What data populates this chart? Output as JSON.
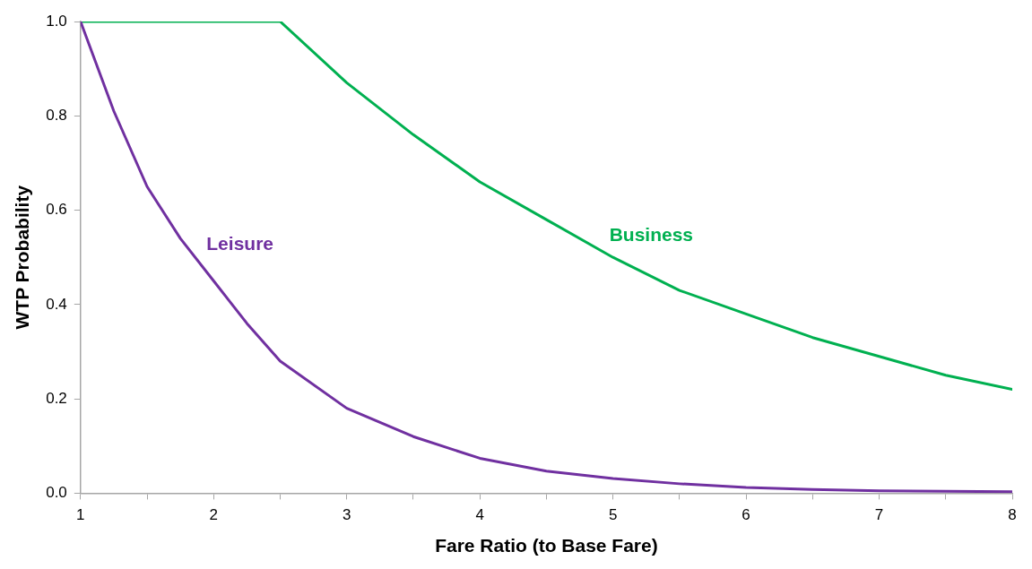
{
  "chart_data": {
    "type": "line",
    "xlabel": "Fare Ratio (to Base Fare)",
    "ylabel": "WTP Probability",
    "xlim": [
      1,
      8
    ],
    "xticks": [
      1,
      {
        "value": 1.5,
        "label": null
      },
      2,
      {
        "value": 2.5,
        "label": null
      },
      3,
      {
        "value": 3.5,
        "label": null
      },
      4,
      {
        "value": 4.5,
        "label": null
      },
      5,
      {
        "value": 5.5,
        "label": null
      },
      6,
      {
        "value": 6.5,
        "label": null
      },
      7,
      {
        "value": 7.5,
        "label": null
      },
      8
    ],
    "ylim": [
      0,
      1
    ],
    "yticks": [
      {
        "value": 0,
        "label": "0.0"
      },
      {
        "value": 0.2,
        "label": "0.2"
      },
      {
        "value": 0.4,
        "label": "0.4"
      },
      {
        "value": 0.6,
        "label": "0.6"
      },
      {
        "value": 0.8,
        "label": "0.8"
      },
      {
        "value": 1,
        "label": "1.0"
      }
    ],
    "grid": false,
    "legend": false,
    "marker": "none",
    "line_style": "solid",
    "series": [
      {
        "name": "Leisure",
        "color": "#7030a0",
        "x": [
          1,
          1.25,
          1.5,
          1.75,
          2,
          2.25,
          2.5,
          3,
          3.5,
          4,
          4.5,
          5,
          5.5,
          6,
          6.5,
          7,
          7.5,
          8
        ],
        "values": [
          1.0,
          0.81,
          0.65,
          0.54,
          0.45,
          0.36,
          0.28,
          0.18,
          0.12,
          0.074,
          0.047,
          0.031,
          0.02,
          0.012,
          0.008,
          0.005,
          0.004,
          0.003
        ]
      },
      {
        "name": "Business",
        "color": "#00b050",
        "x": [
          1,
          2.5,
          3,
          3.5,
          4,
          4.5,
          5,
          5.5,
          6,
          6.5,
          7,
          7.5,
          8
        ],
        "values": [
          1.0,
          1.0,
          0.87,
          0.76,
          0.66,
          0.58,
          0.5,
          0.43,
          0.38,
          0.33,
          0.29,
          0.25,
          0.22
        ]
      }
    ]
  }
}
